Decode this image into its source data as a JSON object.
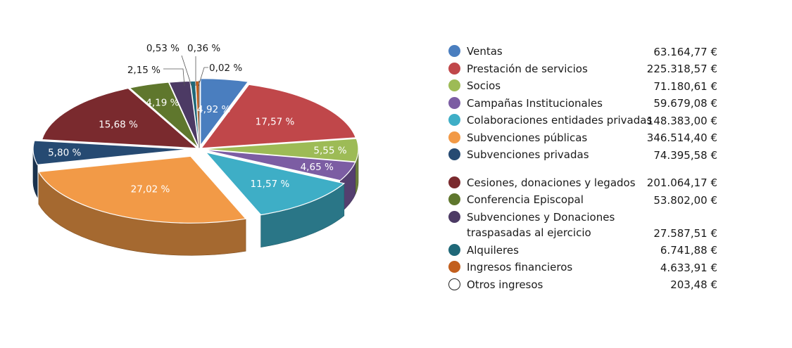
{
  "chart_data": {
    "type": "pie",
    "title": "",
    "slices": [
      {
        "name": "Ventas",
        "value": 63164.77,
        "value_label": "63.164,77 €",
        "percent": 4.92,
        "percent_label": "4,92 %",
        "color": "#4a7ebf"
      },
      {
        "name": "Prestación de servicios",
        "value": 225318.57,
        "value_label": "225.318,57 €",
        "percent": 17.57,
        "percent_label": "17,57 %",
        "color": "#c0474a"
      },
      {
        "name": "Socios",
        "value": 71180.61,
        "value_label": "71.180,61 €",
        "percent": 5.55,
        "percent_label": "5,55 %",
        "color": "#9dbb56"
      },
      {
        "name": "Campañas Institucionales",
        "value": 59679.08,
        "value_label": "59.679,08 €",
        "percent": 4.65,
        "percent_label": "4,65 %",
        "color": "#7c5da3"
      },
      {
        "name": "Colaboraciones entidades privadas",
        "value": 148383.0,
        "value_label": "148.383,00 €",
        "percent": 11.57,
        "percent_label": "11,57 %",
        "color": "#3eaec6"
      },
      {
        "name": "Subvenciones públicas",
        "value": 346514.4,
        "value_label": "346.514,40 €",
        "percent": 27.02,
        "percent_label": "27,02 %",
        "color": "#f29a47"
      },
      {
        "name": "Subvenciones privadas",
        "value": 74395.58,
        "value_label": "74.395,58 €",
        "percent": 5.8,
        "percent_label": "5,80 %",
        "color": "#264a72"
      },
      {
        "name": "Cesiones, donaciones y legados",
        "value": 201064.17,
        "value_label": "201.064,17 €",
        "percent": 15.68,
        "percent_label": "15,68 %",
        "color": "#7a2a2e"
      },
      {
        "name": "Conferencia Episcopal",
        "value": 53802.0,
        "value_label": "53.802,00 €",
        "percent": 4.19,
        "percent_label": "4,19 %",
        "color": "#5f772d"
      },
      {
        "name": "Subvenciones y Donaciones traspasadas al ejercicio",
        "value": 27587.51,
        "value_label": "27.587,51 €",
        "percent": 2.15,
        "percent_label": "2,15 %",
        "color": "#4c3a64"
      },
      {
        "name": "Alquileres",
        "value": 6741.88,
        "value_label": "6.741,88 €",
        "percent": 0.53,
        "percent_label": "0,53 %",
        "color": "#1f6878"
      },
      {
        "name": "Ingresos financieros",
        "value": 4633.91,
        "value_label": "4.633,91 €",
        "percent": 0.36,
        "percent_label": "0,36 %",
        "color": "#c25f1e"
      },
      {
        "name": "Otros ingresos",
        "value": 203.48,
        "value_label": "203,48 €",
        "percent": 0.02,
        "percent_label": "0,02 %",
        "color": "#ffffff"
      }
    ]
  },
  "legend": {
    "rows": [
      {
        "label": "Ventas",
        "value": "63.164,77 €",
        "color": "#4a7ebf"
      },
      {
        "label": "Prestación de servicios",
        "value": "225.318,57 €",
        "color": "#c0474a"
      },
      {
        "label": "Socios",
        "value": "71.180,61 €",
        "color": "#9dbb56"
      },
      {
        "label": "Campañas Institucionales",
        "value": "59.679,08 €",
        "color": "#7c5da3"
      },
      {
        "label": "Colaboraciones entidades privadas",
        "value": "148.383,00 €",
        "color": "#3eaec6"
      },
      {
        "label": "Subvenciones públicas",
        "value": "346.514,40 €",
        "color": "#f29a47"
      },
      {
        "label": "Subvenciones privadas",
        "value": "74.395,58 €",
        "color": "#264a72"
      },
      {
        "label": "Cesiones, donaciones y legados",
        "value": "201.064,17 €",
        "color": "#7a2a2e"
      },
      {
        "label": "Conferencia Episcopal",
        "value": "53.802,00 €",
        "color": "#5f772d"
      },
      {
        "label": "Subvenciones y Donaciones traspasadas al ejercicio",
        "value": "27.587,51 €",
        "color": "#4c3a64"
      },
      {
        "label": "Alquileres",
        "value": "6.741,88 €",
        "color": "#1f6878"
      },
      {
        "label": "Ingresos financieros",
        "value": "4.633,91 €",
        "color": "#c25f1e"
      },
      {
        "label": "Otros ingresos",
        "value": "203,48 €",
        "color": "#ffffff"
      }
    ]
  }
}
